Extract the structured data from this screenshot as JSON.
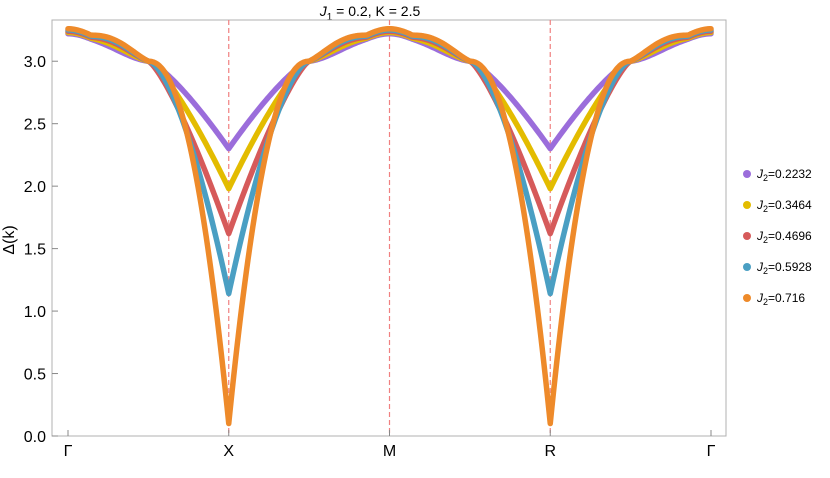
{
  "chart_data": {
    "type": "line",
    "title": "J1 = 0.2,  K = 2.5",
    "title_parts": {
      "j_symbol": "J",
      "j_sub": "1",
      "rest": " = 0.2,  K = 2.5"
    },
    "xlabel": "",
    "ylabel": "Δ(k)",
    "ylim": [
      0,
      3.33
    ],
    "yticks": [
      "0.0",
      "0.5",
      "1.0",
      "1.5",
      "2.0",
      "2.5",
      "3.0"
    ],
    "ytick_values": [
      0.0,
      0.5,
      1.0,
      1.5,
      2.0,
      2.5,
      3.0
    ],
    "xlim": [
      0,
      4
    ],
    "xticks": [
      "Γ",
      "X",
      "M",
      "R",
      "Γ"
    ],
    "xtick_positions": [
      0,
      1,
      2,
      3,
      4
    ],
    "vertical_lines_at": [
      1,
      2,
      3
    ],
    "vertical_line_color": "#f08080",
    "legend_position": "right",
    "series": [
      {
        "name": "J2=0.2232",
        "label_sym": "J",
        "label_sub": "2",
        "label_rest": "=0.2232",
        "color": "#9b6ddb",
        "gamma": 3.22,
        "bump": 3.235,
        "mid": 3.0,
        "min": 2.3,
        "m": 3.22
      },
      {
        "name": "J2=0.3464",
        "label_sym": "J",
        "label_sub": "2",
        "label_rest": "=0.3464",
        "color": "#e3bc00",
        "gamma": 3.23,
        "bump": 3.265,
        "mid": 3.0,
        "min": 1.98,
        "m": 3.23
      },
      {
        "name": "J2=0.4696",
        "label_sym": "J",
        "label_sub": "2",
        "label_rest": "=0.4696",
        "color": "#d65a5a",
        "gamma": 3.24,
        "bump": 3.295,
        "mid": 3.0,
        "min": 1.62,
        "m": 3.24
      },
      {
        "name": "J2=0.5928",
        "label_sym": "J",
        "label_sub": "2",
        "label_rest": "=0.5928",
        "color": "#4a9fc3",
        "gamma": 3.25,
        "bump": 3.315,
        "mid": 3.0,
        "min": 1.14,
        "m": 3.25
      },
      {
        "name": "J2=0.716",
        "label_sym": "J",
        "label_sub": "2",
        "label_rest": "=0.716",
        "color": "#ee8a2a",
        "gamma": 3.26,
        "bump": 3.335,
        "mid": 3.0,
        "min": 0.1,
        "m": 3.26
      }
    ]
  }
}
